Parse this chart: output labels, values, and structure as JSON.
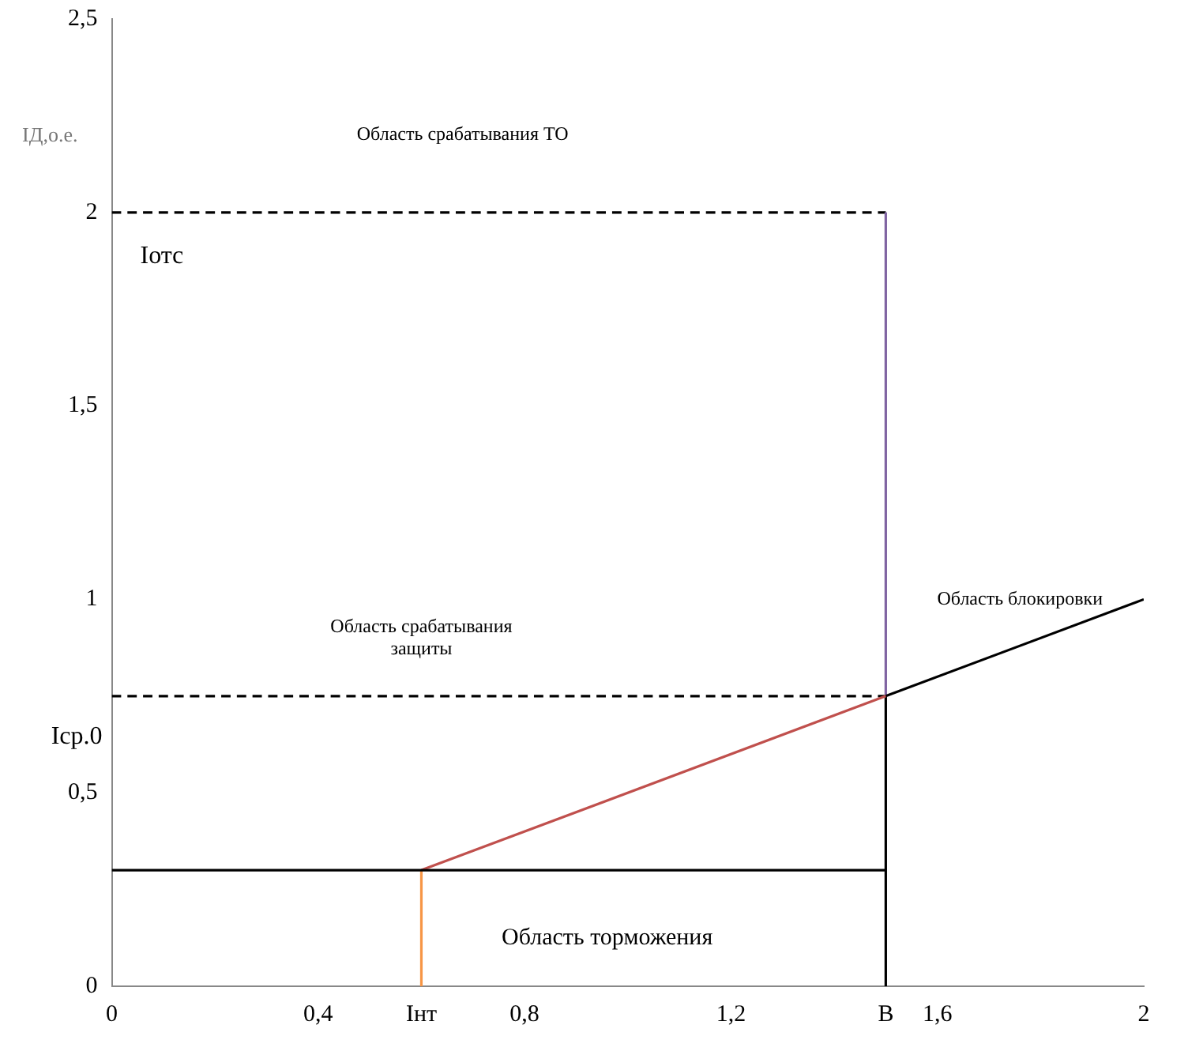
{
  "chart_data": {
    "type": "line",
    "ylabel": "IД,о.е.",
    "xlim": [
      0,
      2
    ],
    "xticks": [
      0,
      {
        "value": 0.4,
        "label": "0,4"
      },
      {
        "value": 0.6,
        "label": "Iнт"
      },
      {
        "value": 0.8,
        "label": "0,8"
      },
      {
        "value": 1.2,
        "label": "1,2"
      },
      {
        "value": 1.5,
        "label": "B"
      },
      {
        "value": 1.6,
        "label": "1,6"
      },
      2
    ],
    "ylim": [
      0,
      2.5
    ],
    "yticks": [
      0,
      {
        "value": 0.5,
        "label": "0,5"
      },
      1,
      {
        "value": 1.5,
        "label": "1,5"
      },
      2,
      {
        "value": 2.5,
        "label": "2,5"
      }
    ],
    "grid": false,
    "legend": false,
    "series": [
      {
        "color": "#000000",
        "x": [
          0,
          0.6,
          1.5
        ],
        "values": [
          0.3,
          0.3,
          0.3
        ]
      },
      {
        "color": "#c0504d",
        "x": [
          0.6,
          1.5
        ],
        "values": [
          0.3,
          0.75
        ]
      },
      {
        "color": "#000000",
        "x": [
          1.5,
          2
        ],
        "values": [
          0.75,
          1
        ]
      },
      {
        "color": "#8064a2",
        "x": [
          1.5,
          1.5
        ],
        "values": [
          0.75,
          2
        ]
      },
      {
        "color": "#000000",
        "x": [
          1.5,
          1.5
        ],
        "values": [
          0,
          0.75
        ]
      },
      {
        "color": "#f79646",
        "x": [
          0.6,
          0.6
        ],
        "values": [
          0,
          0.3
        ]
      },
      {
        "color": "#000000",
        "line_style": "dashed",
        "x": [
          0,
          1.5
        ],
        "values": [
          0.75,
          0.75
        ]
      },
      {
        "color": "#000000",
        "line_style": "dashed",
        "x": [
          0,
          1.5
        ],
        "values": [
          2,
          2
        ]
      }
    ],
    "annotations": [
      {
        "text": "Iср.0",
        "x": 0,
        "y": 0.75
      },
      {
        "text": "Iотс",
        "x": 0,
        "y": 2
      },
      "Область срабатывания ТО",
      "Область срабатывания защиты",
      "Область блокировки",
      "Область торможения"
    ]
  }
}
